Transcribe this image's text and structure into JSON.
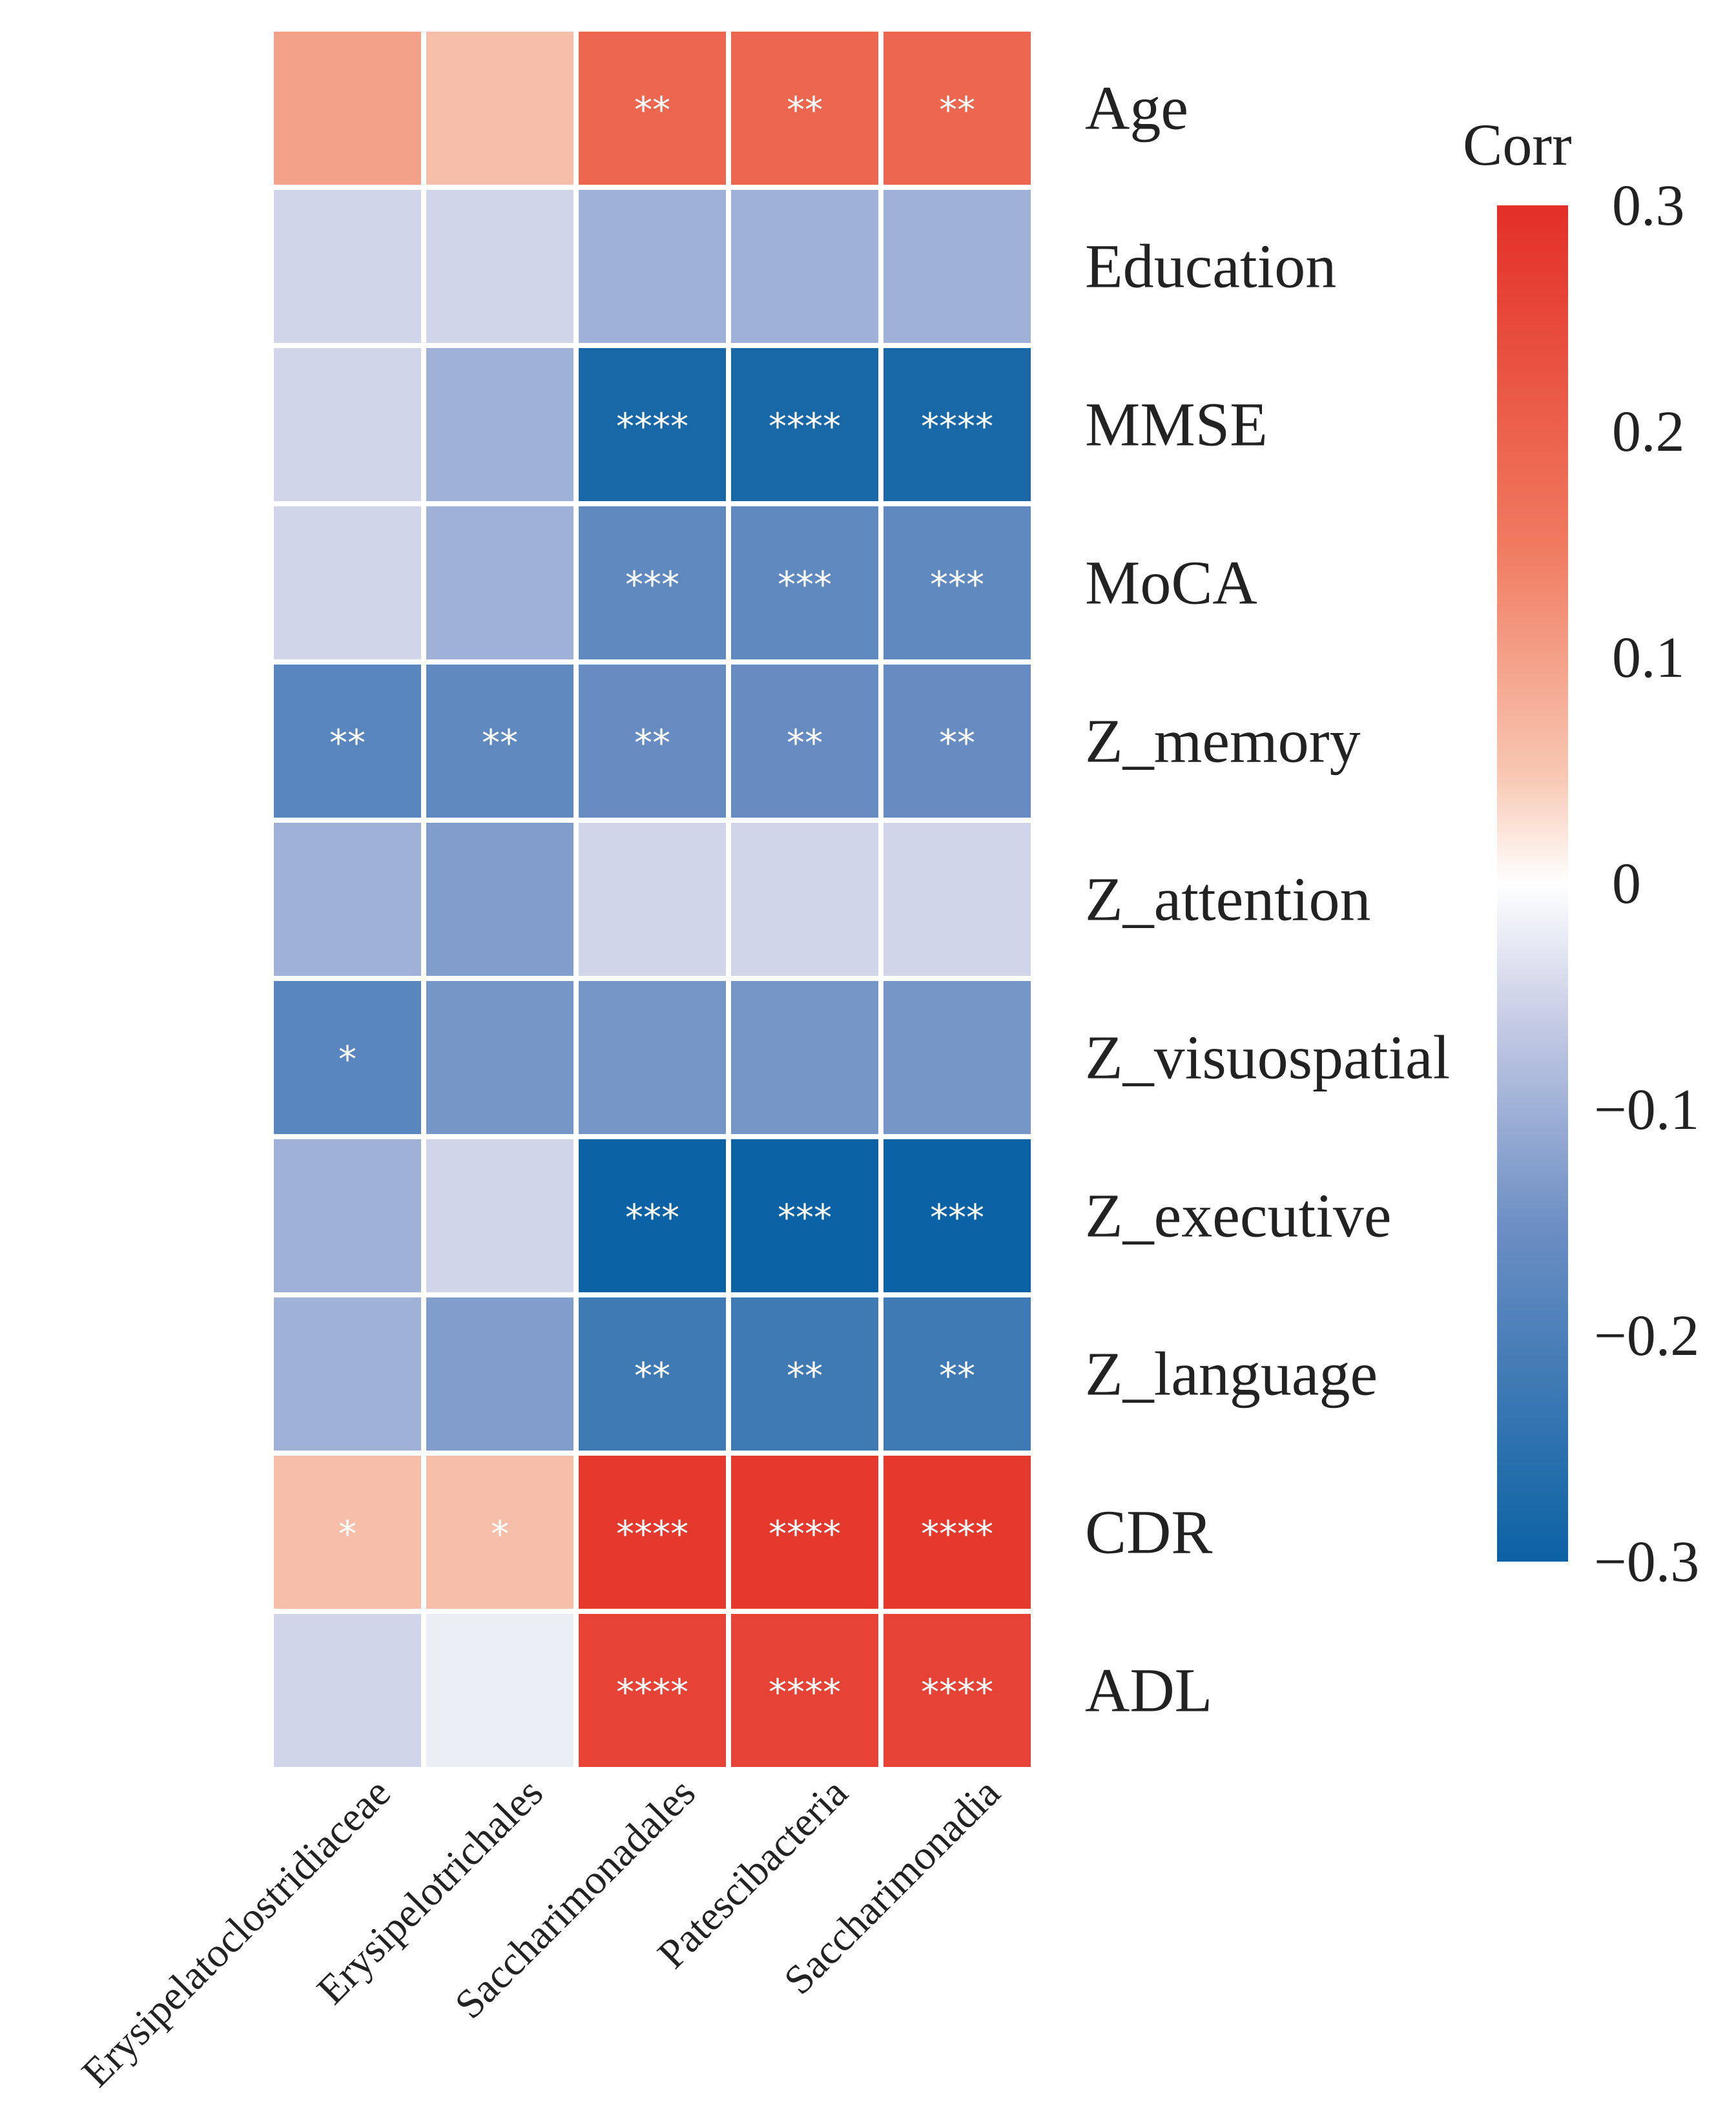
{
  "chart_data": {
    "type": "heatmap",
    "title": "",
    "rows": [
      "Age",
      "Education",
      "MMSE",
      "MoCA",
      "Z_memory",
      "Z_attention",
      "Z_visuospatial",
      "Z_executive",
      "Z_language",
      "CDR",
      "ADL"
    ],
    "columns": [
      "Erysipelatoclostridiaceae",
      "Erysipelotrichales",
      "Saccharimonadales",
      "Patescibacteria",
      "Saccharimonadia"
    ],
    "values": [
      [
        0.1,
        0.06,
        0.19,
        0.19,
        0.19
      ],
      [
        -0.05,
        -0.05,
        -0.1,
        -0.1,
        -0.1
      ],
      [
        -0.05,
        -0.1,
        -0.28,
        -0.28,
        -0.28
      ],
      [
        -0.05,
        -0.1,
        -0.17,
        -0.17,
        -0.17
      ],
      [
        -0.18,
        -0.17,
        -0.16,
        -0.16,
        -0.16
      ],
      [
        -0.1,
        -0.13,
        -0.05,
        -0.05,
        -0.05
      ],
      [
        -0.18,
        -0.14,
        -0.14,
        -0.14,
        -0.14
      ],
      [
        -0.1,
        -0.05,
        -0.3,
        -0.3,
        -0.3
      ],
      [
        -0.1,
        -0.13,
        -0.22,
        -0.22,
        -0.22
      ],
      [
        0.06,
        0.06,
        0.28,
        0.28,
        0.28
      ],
      [
        -0.05,
        -0.02,
        0.26,
        0.26,
        0.26
      ]
    ],
    "significance": [
      [
        "",
        "",
        "**",
        "**",
        "**"
      ],
      [
        "",
        "",
        "",
        "",
        ""
      ],
      [
        "",
        "",
        "****",
        "****",
        "****"
      ],
      [
        "",
        "",
        "***",
        "***",
        "***"
      ],
      [
        "**",
        "**",
        "**",
        "**",
        "**"
      ],
      [
        "",
        "",
        "",
        "",
        ""
      ],
      [
        "*",
        "",
        "",
        "",
        ""
      ],
      [
        "",
        "",
        "***",
        "***",
        "***"
      ],
      [
        "",
        "",
        "**",
        "**",
        "**"
      ],
      [
        "*",
        "*",
        "****",
        "****",
        "****"
      ],
      [
        "",
        "",
        "****",
        "****",
        "****"
      ]
    ],
    "legend": {
      "title": "Corr",
      "placement": "right",
      "range": [
        -0.3,
        0.3
      ],
      "ticks": [
        "0.3",
        "0.2",
        "0.1",
        "0",
        "−0.1",
        "−0.2",
        "−0.3"
      ],
      "tick_values": [
        0.3,
        0.2,
        0.1,
        0,
        -0.1,
        -0.2,
        -0.3
      ]
    },
    "colors": {
      "high": "#e32f27",
      "mid": "#ffffff",
      "low": "#0b62a4"
    }
  }
}
